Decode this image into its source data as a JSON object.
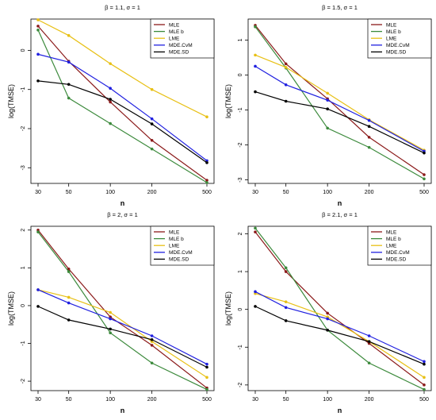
{
  "chart_data": [
    {
      "type": "line",
      "title": "β = 1.1, σ = 1",
      "xlabel": "n",
      "ylabel": "log(TMSE)",
      "x": [
        30,
        50,
        100,
        200,
        500
      ],
      "xtick_labels": [
        "30",
        "50",
        "100",
        "200",
        "500"
      ],
      "x_scale": "log",
      "ylim": [
        -3.4,
        0.8
      ],
      "yticks": [
        0,
        -1,
        -2,
        -3
      ],
      "ytick_labels": [
        "0",
        "-1",
        "-2",
        "-3"
      ],
      "legend_position": "top-right",
      "series": [
        {
          "name": "MLE",
          "color": "#8B1A1A",
          "values": [
            0.62,
            -0.28,
            -1.32,
            -2.3,
            -3.32
          ]
        },
        {
          "name": "MLE b",
          "color": "#3C8A3C",
          "values": [
            0.52,
            -1.22,
            -1.87,
            -2.52,
            -3.38
          ]
        },
        {
          "name": "LME",
          "color": "#E8C015",
          "values": [
            0.78,
            0.38,
            -0.34,
            -1.0,
            -1.7
          ]
        },
        {
          "name": "MDE.CvM",
          "color": "#2020E0",
          "values": [
            -0.1,
            -0.3,
            -0.97,
            -1.75,
            -2.82
          ]
        },
        {
          "name": "MDE.SD",
          "color": "#000000",
          "values": [
            -0.78,
            -0.87,
            -1.25,
            -1.88,
            -2.87
          ]
        }
      ]
    },
    {
      "type": "line",
      "title": "β = 1.5, σ = 1",
      "xlabel": "n",
      "ylabel": "log(TMSE)",
      "x": [
        30,
        50,
        100,
        200,
        500
      ],
      "xtick_labels": [
        "30",
        "50",
        "100",
        "200",
        "500"
      ],
      "x_scale": "log",
      "ylim": [
        -3.1,
        1.6
      ],
      "yticks": [
        1,
        0,
        -1,
        -2,
        -3
      ],
      "ytick_labels": [
        "1",
        "0",
        "-1",
        "-2",
        "-3"
      ],
      "legend_position": "top-right",
      "series": [
        {
          "name": "MLE",
          "color": "#8B1A1A",
          "values": [
            1.42,
            0.32,
            -0.68,
            -1.78,
            -2.85
          ]
        },
        {
          "name": "MLE b",
          "color": "#3C8A3C",
          "values": [
            1.38,
            0.2,
            -1.52,
            -2.07,
            -2.97
          ]
        },
        {
          "name": "LME",
          "color": "#E8C015",
          "values": [
            0.57,
            0.22,
            -0.52,
            -1.28,
            -2.15
          ]
        },
        {
          "name": "MDE.CvM",
          "color": "#2020E0",
          "values": [
            0.25,
            -0.28,
            -0.72,
            -1.3,
            -2.18
          ]
        },
        {
          "name": "MDE.SD",
          "color": "#000000",
          "values": [
            -0.48,
            -0.75,
            -0.97,
            -1.47,
            -2.23
          ]
        }
      ]
    },
    {
      "type": "line",
      "title": "β = 2, σ = 1",
      "xlabel": "n",
      "ylabel": "log(TMSE)",
      "x": [
        30,
        50,
        100,
        200,
        500
      ],
      "xtick_labels": [
        "30",
        "50",
        "100",
        "200",
        "500"
      ],
      "x_scale": "log",
      "ylim": [
        -2.25,
        2.1
      ],
      "yticks": [
        2,
        1,
        0,
        -1,
        -2
      ],
      "ytick_labels": [
        "2",
        "1",
        "0",
        "-1",
        "-2"
      ],
      "legend_position": "top-right",
      "series": [
        {
          "name": "MLE",
          "color": "#8B1A1A",
          "values": [
            2.0,
            0.97,
            -0.3,
            -1.05,
            -2.18
          ]
        },
        {
          "name": "MLE b",
          "color": "#3C8A3C",
          "values": [
            1.95,
            0.9,
            -0.72,
            -1.52,
            -2.22
          ]
        },
        {
          "name": "LME",
          "color": "#E8C015",
          "values": [
            0.42,
            0.22,
            -0.18,
            -0.95,
            -1.9
          ]
        },
        {
          "name": "MDE.CvM",
          "color": "#2020E0",
          "values": [
            0.42,
            0.07,
            -0.35,
            -0.8,
            -1.55
          ]
        },
        {
          "name": "MDE.SD",
          "color": "#000000",
          "values": [
            -0.02,
            -0.38,
            -0.62,
            -0.9,
            -1.63
          ]
        }
      ]
    },
    {
      "type": "line",
      "title": "β = 2.1, σ = 1",
      "xlabel": "n",
      "ylabel": "log(TMSE)",
      "x": [
        30,
        50,
        100,
        200,
        500
      ],
      "xtick_labels": [
        "30",
        "50",
        "100",
        "200",
        "500"
      ],
      "x_scale": "log",
      "ylim": [
        -2.15,
        2.2
      ],
      "yticks": [
        2,
        1,
        0,
        -1,
        -2
      ],
      "ytick_labels": [
        "2",
        "1",
        "0",
        "-1",
        "-2"
      ],
      "legend_position": "top-right",
      "series": [
        {
          "name": "MLE",
          "color": "#8B1A1A",
          "values": [
            2.05,
            1.0,
            -0.1,
            -0.9,
            -2.0
          ]
        },
        {
          "name": "MLE b",
          "color": "#3C8A3C",
          "values": [
            2.15,
            1.1,
            -0.55,
            -1.42,
            -2.12
          ]
        },
        {
          "name": "LME",
          "color": "#E8C015",
          "values": [
            0.42,
            0.2,
            -0.2,
            -0.85,
            -1.8
          ]
        },
        {
          "name": "MDE.CvM",
          "color": "#2020E0",
          "values": [
            0.47,
            0.05,
            -0.25,
            -0.7,
            -1.38
          ]
        },
        {
          "name": "MDE.SD",
          "color": "#000000",
          "values": [
            0.08,
            -0.3,
            -0.55,
            -0.85,
            -1.45
          ]
        }
      ]
    }
  ]
}
